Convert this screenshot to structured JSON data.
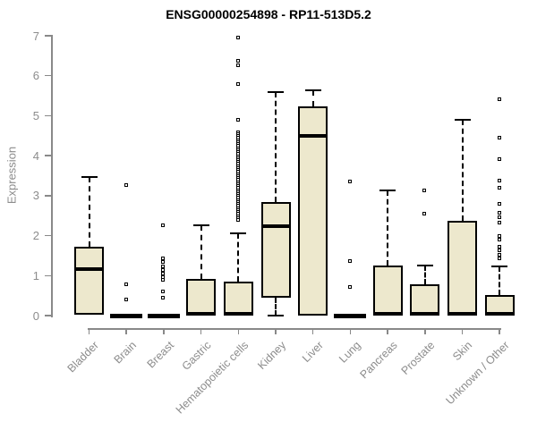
{
  "title": "ENSG00000254898 - RP11-513D5.2",
  "colors": {
    "background": "#FFFFFF",
    "box_fill": "#EDE8CD",
    "box_border": "#000000",
    "axis_line": "#898989",
    "axis_text": "#8C8C8C",
    "title_text": "#000000"
  },
  "chart_data": {
    "type": "boxplot",
    "title": "ENSG00000254898 - RP11-513D5.2",
    "xlabel": "",
    "ylabel": "Expression",
    "ylim": [
      0,
      7
    ],
    "yticks": [
      0,
      1,
      2,
      3,
      4,
      5,
      6,
      7
    ],
    "grid": false,
    "legend": "none",
    "categories": [
      "Bladder",
      "Brain",
      "Breast",
      "Gastric",
      "Hematopoietic cells",
      "Kidney",
      "Liver",
      "Lung",
      "Pancreas",
      "Prostate",
      "Skin",
      "Unknown / Other"
    ],
    "series": [
      {
        "name": "Bladder",
        "whisker_low": 0,
        "q1": 0.03,
        "median": 1.17,
        "q3": 1.72,
        "whisker_high": 3.46,
        "outliers": []
      },
      {
        "name": "Brain",
        "whisker_low": 0,
        "q1": 0,
        "median": 0,
        "q3": 0,
        "whisker_high": 0,
        "outliers": [
          3.25,
          0.78,
          0.4
        ]
      },
      {
        "name": "Breast",
        "whisker_low": 0,
        "q1": 0,
        "median": 0,
        "q3": 0,
        "whisker_high": 0,
        "outliers": [
          2.25,
          1.42,
          1.33,
          1.22,
          1.12,
          1.03,
          0.95,
          0.89,
          0.6,
          0.43
        ]
      },
      {
        "name": "Gastric",
        "whisker_low": 0,
        "q1": 0,
        "median": 0.05,
        "q3": 0.92,
        "whisker_high": 2.25,
        "outliers": []
      },
      {
        "name": "Hematopoietic cells",
        "whisker_low": 0,
        "q1": 0,
        "median": 0.05,
        "q3": 0.85,
        "whisker_high": 2.05,
        "outliers": [
          6.95,
          6.37,
          6.26,
          5.77,
          4.88,
          4.58,
          4.53,
          4.48,
          4.43,
          4.38,
          4.33,
          4.28,
          4.23,
          4.18,
          4.13,
          4.08,
          4.03,
          3.98,
          3.93,
          3.88,
          3.83,
          3.78,
          3.73,
          3.68,
          3.63,
          3.58,
          3.53,
          3.48,
          3.43,
          3.38,
          3.33,
          3.28,
          3.23,
          3.18,
          3.13,
          3.08,
          3.03,
          2.98,
          2.93,
          2.88,
          2.83,
          2.78,
          2.73,
          2.68,
          2.63,
          2.58,
          2.53,
          2.48,
          2.43,
          2.38
        ]
      },
      {
        "name": "Kidney",
        "whisker_low": 0,
        "q1": 0.45,
        "median": 2.24,
        "q3": 2.84,
        "whisker_high": 5.6,
        "outliers": []
      },
      {
        "name": "Liver",
        "whisker_low": 0,
        "q1": 0,
        "median": 4.5,
        "q3": 5.23,
        "whisker_high": 5.64,
        "outliers": []
      },
      {
        "name": "Lung",
        "whisker_low": 0,
        "q1": 0,
        "median": 0,
        "q3": 0,
        "whisker_high": 0,
        "outliers": [
          3.35,
          1.35,
          0.7
        ]
      },
      {
        "name": "Pancreas",
        "whisker_low": 0,
        "q1": 0,
        "median": 0.05,
        "q3": 1.25,
        "whisker_high": 3.12,
        "outliers": []
      },
      {
        "name": "Prostate",
        "whisker_low": 0,
        "q1": 0,
        "median": 0.05,
        "q3": 0.78,
        "whisker_high": 1.25,
        "outliers": [
          3.11,
          2.54
        ]
      },
      {
        "name": "Skin",
        "whisker_low": 0,
        "q1": 0,
        "median": 0.05,
        "q3": 2.36,
        "whisker_high": 4.89,
        "outliers": []
      },
      {
        "name": "Unknown / Other",
        "whisker_low": 0,
        "q1": 0,
        "median": 0.05,
        "q3": 0.52,
        "whisker_high": 1.22,
        "outliers": [
          5.4,
          4.45,
          3.91,
          3.37,
          3.18,
          2.79,
          2.55,
          2.45,
          2.32,
          1.97,
          1.9,
          1.72,
          1.62,
          1.52,
          1.42
        ]
      }
    ]
  }
}
